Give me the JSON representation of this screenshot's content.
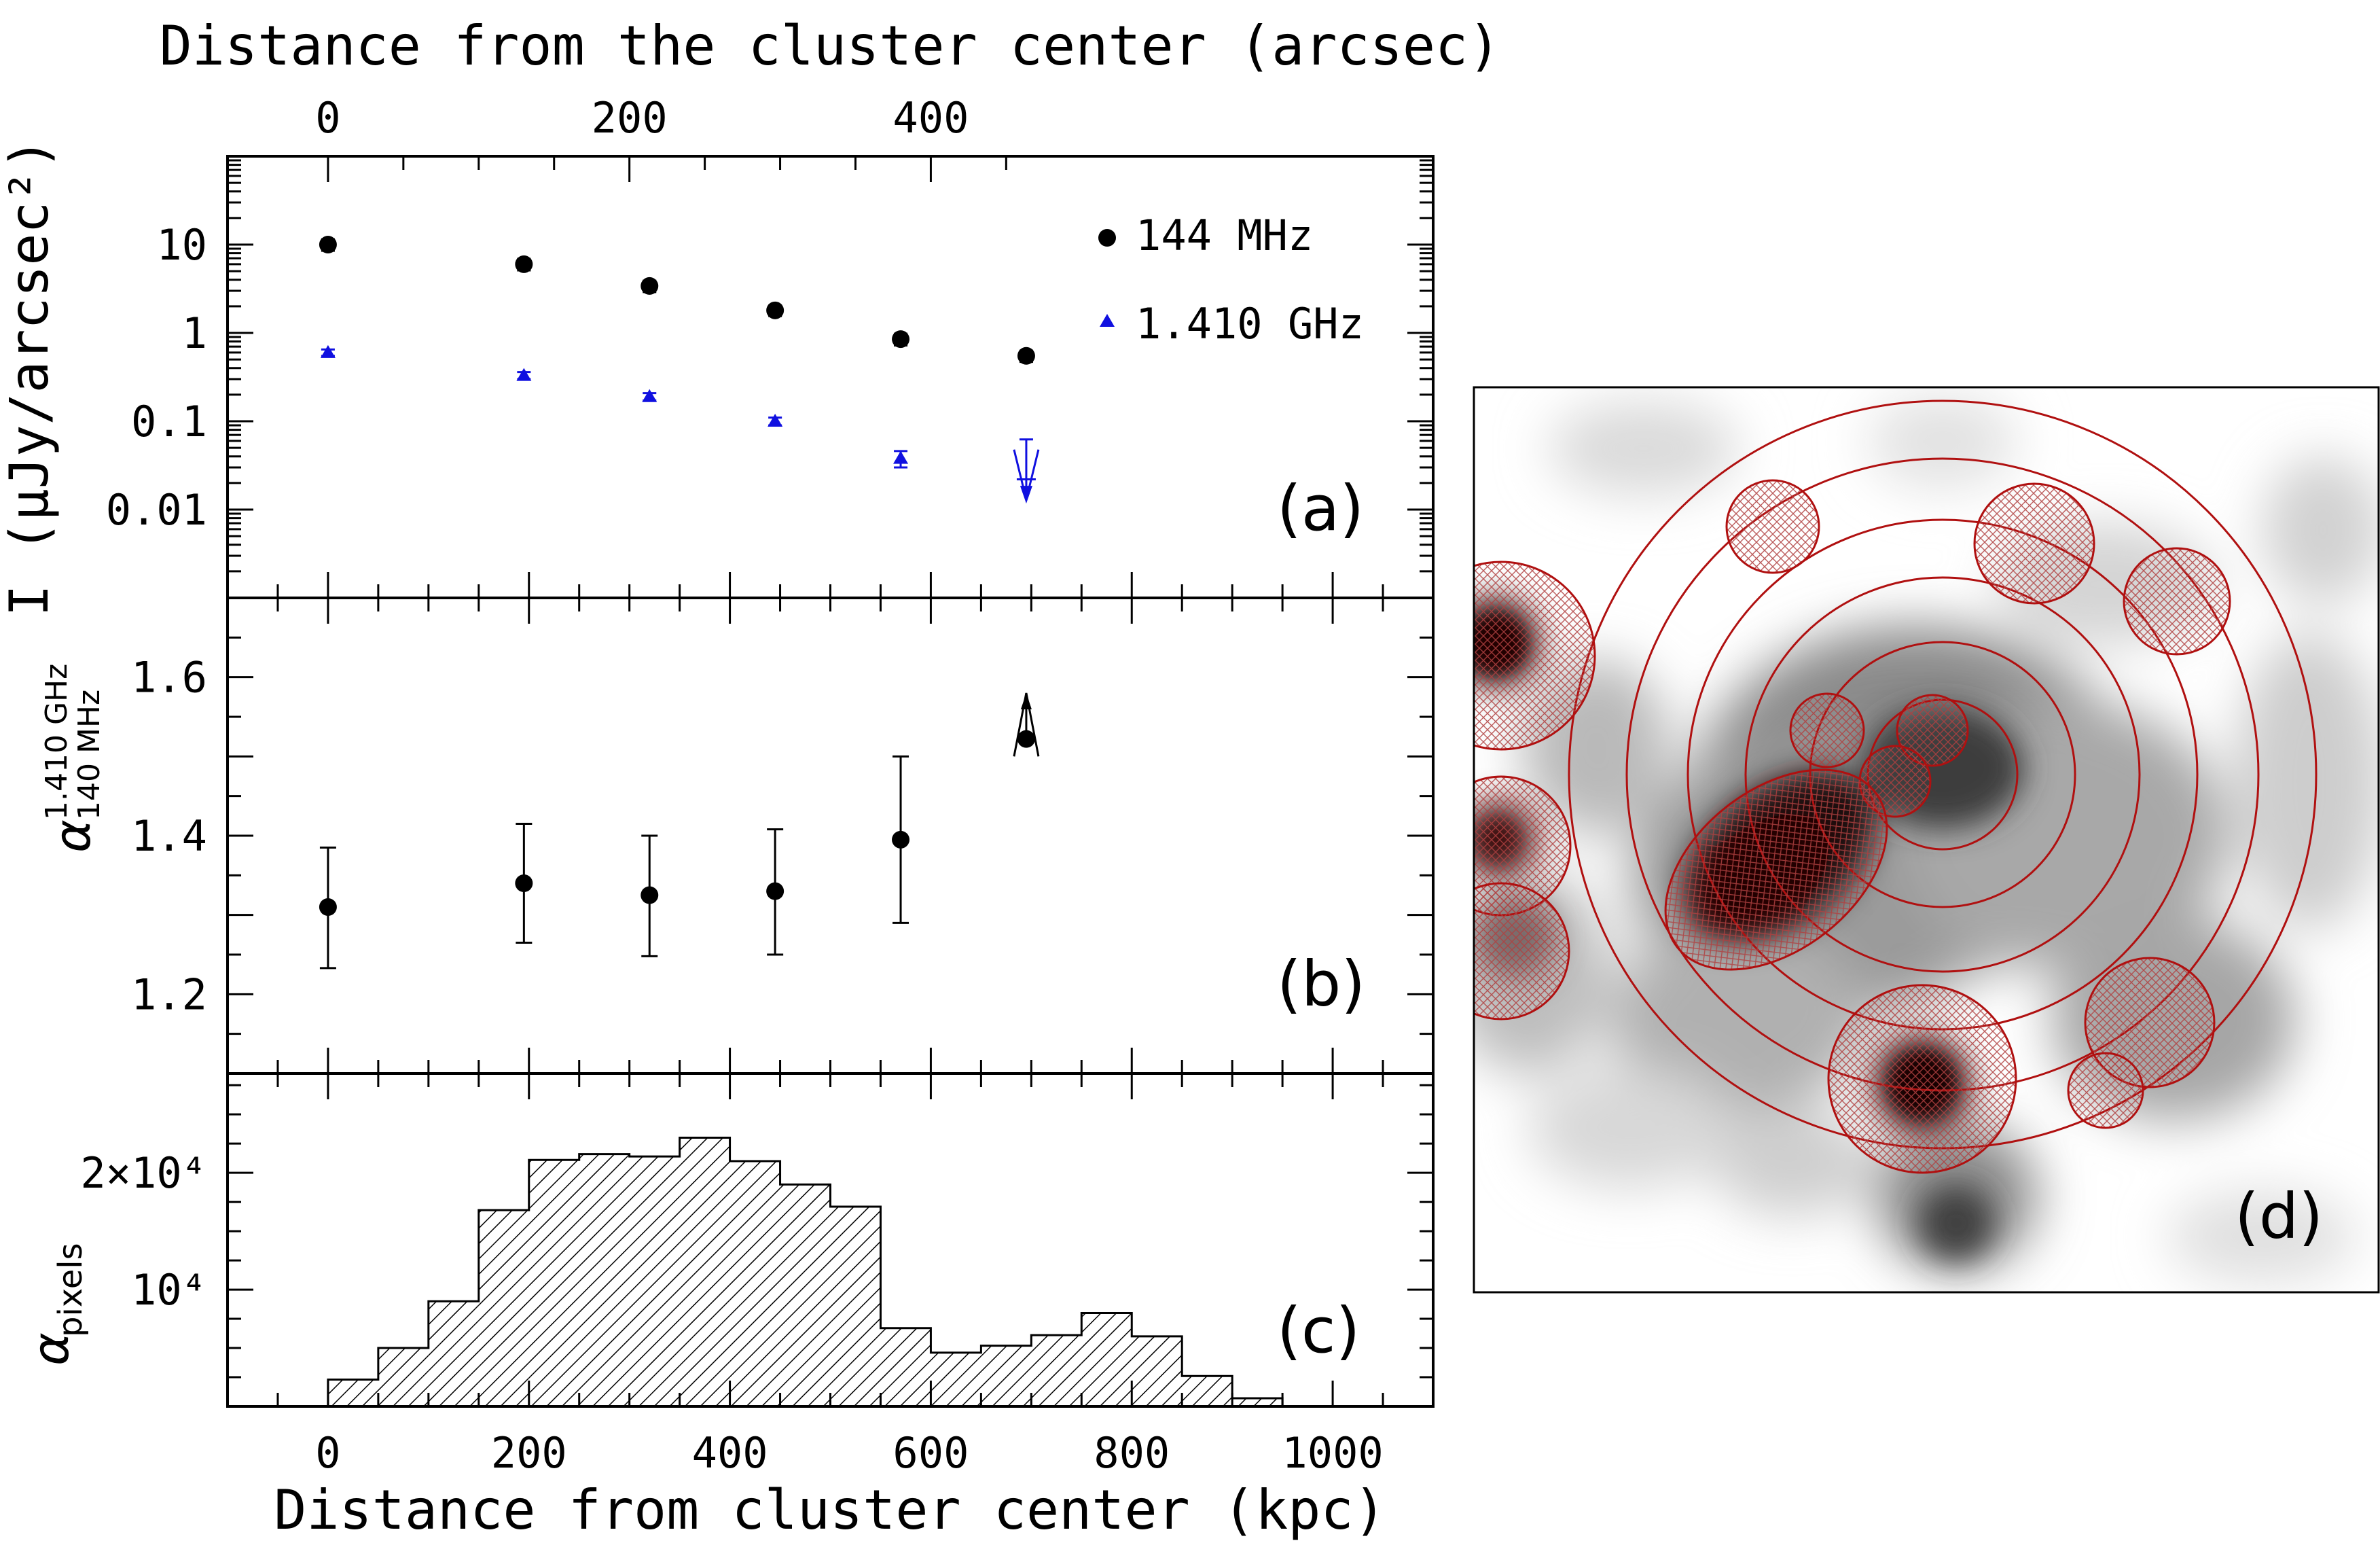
{
  "chart_data": [
    {
      "panel": "(a)",
      "type": "scatter",
      "top_axis_label": "Distance from the cluster center (arcsec)",
      "top_tick_labels": [
        "0",
        "200",
        "400"
      ],
      "top_ticks_kpc": [
        0,
        200,
        400
      ],
      "ylabel": "I (μJy/arcsec²)",
      "y_scale": "log",
      "ylim": [
        0.001,
        100
      ],
      "xlim": [
        -100,
        1100
      ],
      "y_tick_labels": [
        {
          "value": 10,
          "label": "10"
        },
        {
          "value": 1,
          "label": "1"
        },
        {
          "value": 0.1,
          "label": "0.1"
        },
        {
          "value": 0.01,
          "label": "0.01"
        }
      ],
      "legend_position": "top-right",
      "series": [
        {
          "name": "144 MHz",
          "marker": "circle",
          "color": "#000000",
          "points": [
            {
              "x": 0,
              "y": 10.0,
              "err": 1.5
            },
            {
              "x": 195,
              "y": 6.0,
              "err": 0.9
            },
            {
              "x": 320,
              "y": 3.4,
              "err": 0.5
            },
            {
              "x": 445,
              "y": 1.8,
              "err": 0.25
            },
            {
              "x": 570,
              "y": 0.85,
              "err": 0.13
            },
            {
              "x": 695,
              "y": 0.55,
              "err": 0.08
            }
          ]
        },
        {
          "name": "1.410 GHz",
          "marker": "triangle",
          "color": "#1010e0",
          "points": [
            {
              "x": 0,
              "y": 0.6,
              "err": 0.05
            },
            {
              "x": 195,
              "y": 0.33,
              "err": 0.03
            },
            {
              "x": 320,
              "y": 0.19,
              "err": 0.018
            },
            {
              "x": 445,
              "y": 0.1,
              "err": 0.01
            },
            {
              "x": 570,
              "y": 0.038,
              "err": 0.008
            }
          ],
          "upper_limit": {
            "x": 695,
            "y": 0.013
          }
        }
      ]
    },
    {
      "panel": "(b)",
      "type": "scatter",
      "ylabel": "α 1.410 GHz / 140 MHz",
      "ylim": [
        1.1,
        1.7
      ],
      "xlim": [
        -100,
        1100
      ],
      "y_tick_labels": [
        {
          "value": 1.6,
          "label": "1.6"
        },
        {
          "value": 1.4,
          "label": "1.4"
        },
        {
          "value": 1.2,
          "label": "1.2"
        }
      ],
      "series": [
        {
          "color": "#000000",
          "points": [
            {
              "x": 0,
              "y": 1.31,
              "ylo": 1.233,
              "yhi": 1.385
            },
            {
              "x": 195,
              "y": 1.34,
              "ylo": 1.265,
              "yhi": 1.415
            },
            {
              "x": 320,
              "y": 1.325,
              "ylo": 1.248,
              "yhi": 1.4
            },
            {
              "x": 445,
              "y": 1.33,
              "ylo": 1.25,
              "yhi": 1.408
            },
            {
              "x": 570,
              "y": 1.395,
              "ylo": 1.29,
              "yhi": 1.5
            }
          ],
          "lower_limit": {
            "x": 695,
            "y": 1.522
          }
        }
      ]
    },
    {
      "panel": "(c)",
      "type": "bar",
      "xlabel": "Distance from cluster center (kpc)",
      "ylabel": "α pixels",
      "ylim": [
        0,
        28500
      ],
      "xlim": [
        -100,
        1100
      ],
      "x_tick_labels": [
        "0",
        "200",
        "400",
        "600",
        "800",
        "1000"
      ],
      "x_ticks": [
        0,
        200,
        400,
        600,
        800,
        1000
      ],
      "y_tick_labels": [
        {
          "value": 20000,
          "label": "2×10⁴"
        },
        {
          "value": 10000,
          "label": "10⁴"
        }
      ],
      "bin_width": 50,
      "bins_start": [
        0,
        50,
        100,
        150,
        200,
        250,
        300,
        350,
        400,
        450,
        500,
        550,
        600,
        650,
        700,
        750,
        800,
        850,
        900
      ],
      "values": [
        2300,
        5000,
        9000,
        16800,
        21100,
        21600,
        21400,
        23000,
        21000,
        19000,
        17100,
        6700,
        4600,
        5200,
        6100,
        8000,
        6000,
        2600,
        700
      ]
    }
  ],
  "panel_d": {
    "label": "(d)"
  }
}
